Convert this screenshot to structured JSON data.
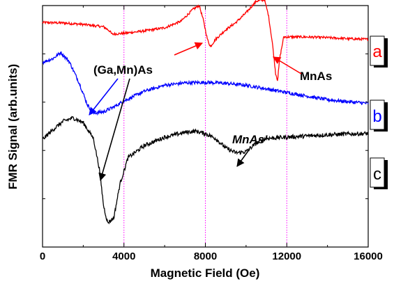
{
  "chart_data": {
    "type": "line",
    "xlabel": "Magnetic Field  (Oe)",
    "ylabel": "FMR Signal (arb.units)",
    "xlim": [
      0,
      16000
    ],
    "ylim": [
      0,
      10
    ],
    "x_ticks": [
      0,
      4000,
      8000,
      12000,
      16000
    ],
    "x_tick_labels": [
      "0",
      "4000",
      "8000",
      "12000",
      "16000"
    ],
    "grid": false,
    "vlines": [
      4000,
      8000,
      12000
    ],
    "vline_color": "#ff00ff",
    "series": [
      {
        "name": "a",
        "color": "#ff0000",
        "points": [
          [
            0,
            9.3
          ],
          [
            1000,
            9.28
          ],
          [
            2000,
            9.22
          ],
          [
            3000,
            9.12
          ],
          [
            3300,
            8.95
          ],
          [
            3400,
            8.82
          ],
          [
            4000,
            8.85
          ],
          [
            5000,
            8.95
          ],
          [
            6000,
            9.08
          ],
          [
            6800,
            9.35
          ],
          [
            7400,
            9.85
          ],
          [
            7700,
            10.0
          ],
          [
            7900,
            9.4
          ],
          [
            8100,
            8.6
          ],
          [
            8250,
            8.3
          ],
          [
            8500,
            8.6
          ],
          [
            9000,
            9.0
          ],
          [
            9500,
            9.3
          ],
          [
            10000,
            9.7
          ],
          [
            10500,
            10.18
          ],
          [
            10900,
            10.25
          ],
          [
            11100,
            9.6
          ],
          [
            11300,
            8.4
          ],
          [
            11450,
            7.2
          ],
          [
            11550,
            6.9
          ],
          [
            11650,
            7.8
          ],
          [
            11850,
            8.7
          ],
          [
            12200,
            8.7
          ],
          [
            13000,
            8.7
          ],
          [
            14000,
            8.67
          ],
          [
            15000,
            8.63
          ],
          [
            16000,
            8.6
          ]
        ]
      },
      {
        "name": "b",
        "color": "#0000ff",
        "points": [
          [
            0,
            7.65
          ],
          [
            500,
            7.8
          ],
          [
            900,
            8.05
          ],
          [
            1300,
            7.7
          ],
          [
            1800,
            6.8
          ],
          [
            2200,
            5.9
          ],
          [
            2500,
            5.55
          ],
          [
            3000,
            5.6
          ],
          [
            3500,
            5.8
          ],
          [
            4000,
            6.05
          ],
          [
            5000,
            6.45
          ],
          [
            6000,
            6.7
          ],
          [
            7000,
            6.8
          ],
          [
            8000,
            6.82
          ],
          [
            9000,
            6.78
          ],
          [
            10000,
            6.7
          ],
          [
            11000,
            6.55
          ],
          [
            12000,
            6.4
          ],
          [
            13000,
            6.25
          ],
          [
            14000,
            6.1
          ],
          [
            15000,
            6.02
          ],
          [
            16000,
            5.95
          ]
        ]
      },
      {
        "name": "c",
        "color": "#000000",
        "points": [
          [
            0,
            4.45
          ],
          [
            500,
            4.85
          ],
          [
            1000,
            5.2
          ],
          [
            1500,
            5.35
          ],
          [
            2000,
            5.15
          ],
          [
            2500,
            4.5
          ],
          [
            2800,
            3.2
          ],
          [
            3000,
            1.7
          ],
          [
            3200,
            1.0
          ],
          [
            3500,
            1.2
          ],
          [
            3800,
            2.6
          ],
          [
            4200,
            3.7
          ],
          [
            5000,
            4.2
          ],
          [
            6000,
            4.55
          ],
          [
            7000,
            4.75
          ],
          [
            7500,
            4.8
          ],
          [
            8000,
            4.7
          ],
          [
            8500,
            4.5
          ],
          [
            9000,
            4.1
          ],
          [
            9500,
            3.9
          ],
          [
            10000,
            3.95
          ],
          [
            10500,
            4.3
          ],
          [
            11000,
            4.5
          ],
          [
            12000,
            4.55
          ],
          [
            13000,
            4.6
          ],
          [
            14000,
            4.65
          ],
          [
            15000,
            4.68
          ],
          [
            16000,
            4.7
          ]
        ]
      }
    ],
    "annotations": [
      {
        "text": "(Ga,Mn)As",
        "italic": false
      },
      {
        "text": "MnAs",
        "italic": false
      },
      {
        "text": "MnAs'",
        "italic": true
      }
    ],
    "trace_tags": [
      "a",
      "b",
      "c"
    ]
  },
  "colors": {
    "vline": "#ff00ff",
    "arrow_red": "#ff0000",
    "arrow_blue": "#0000ff",
    "arrow_black": "#000000"
  }
}
